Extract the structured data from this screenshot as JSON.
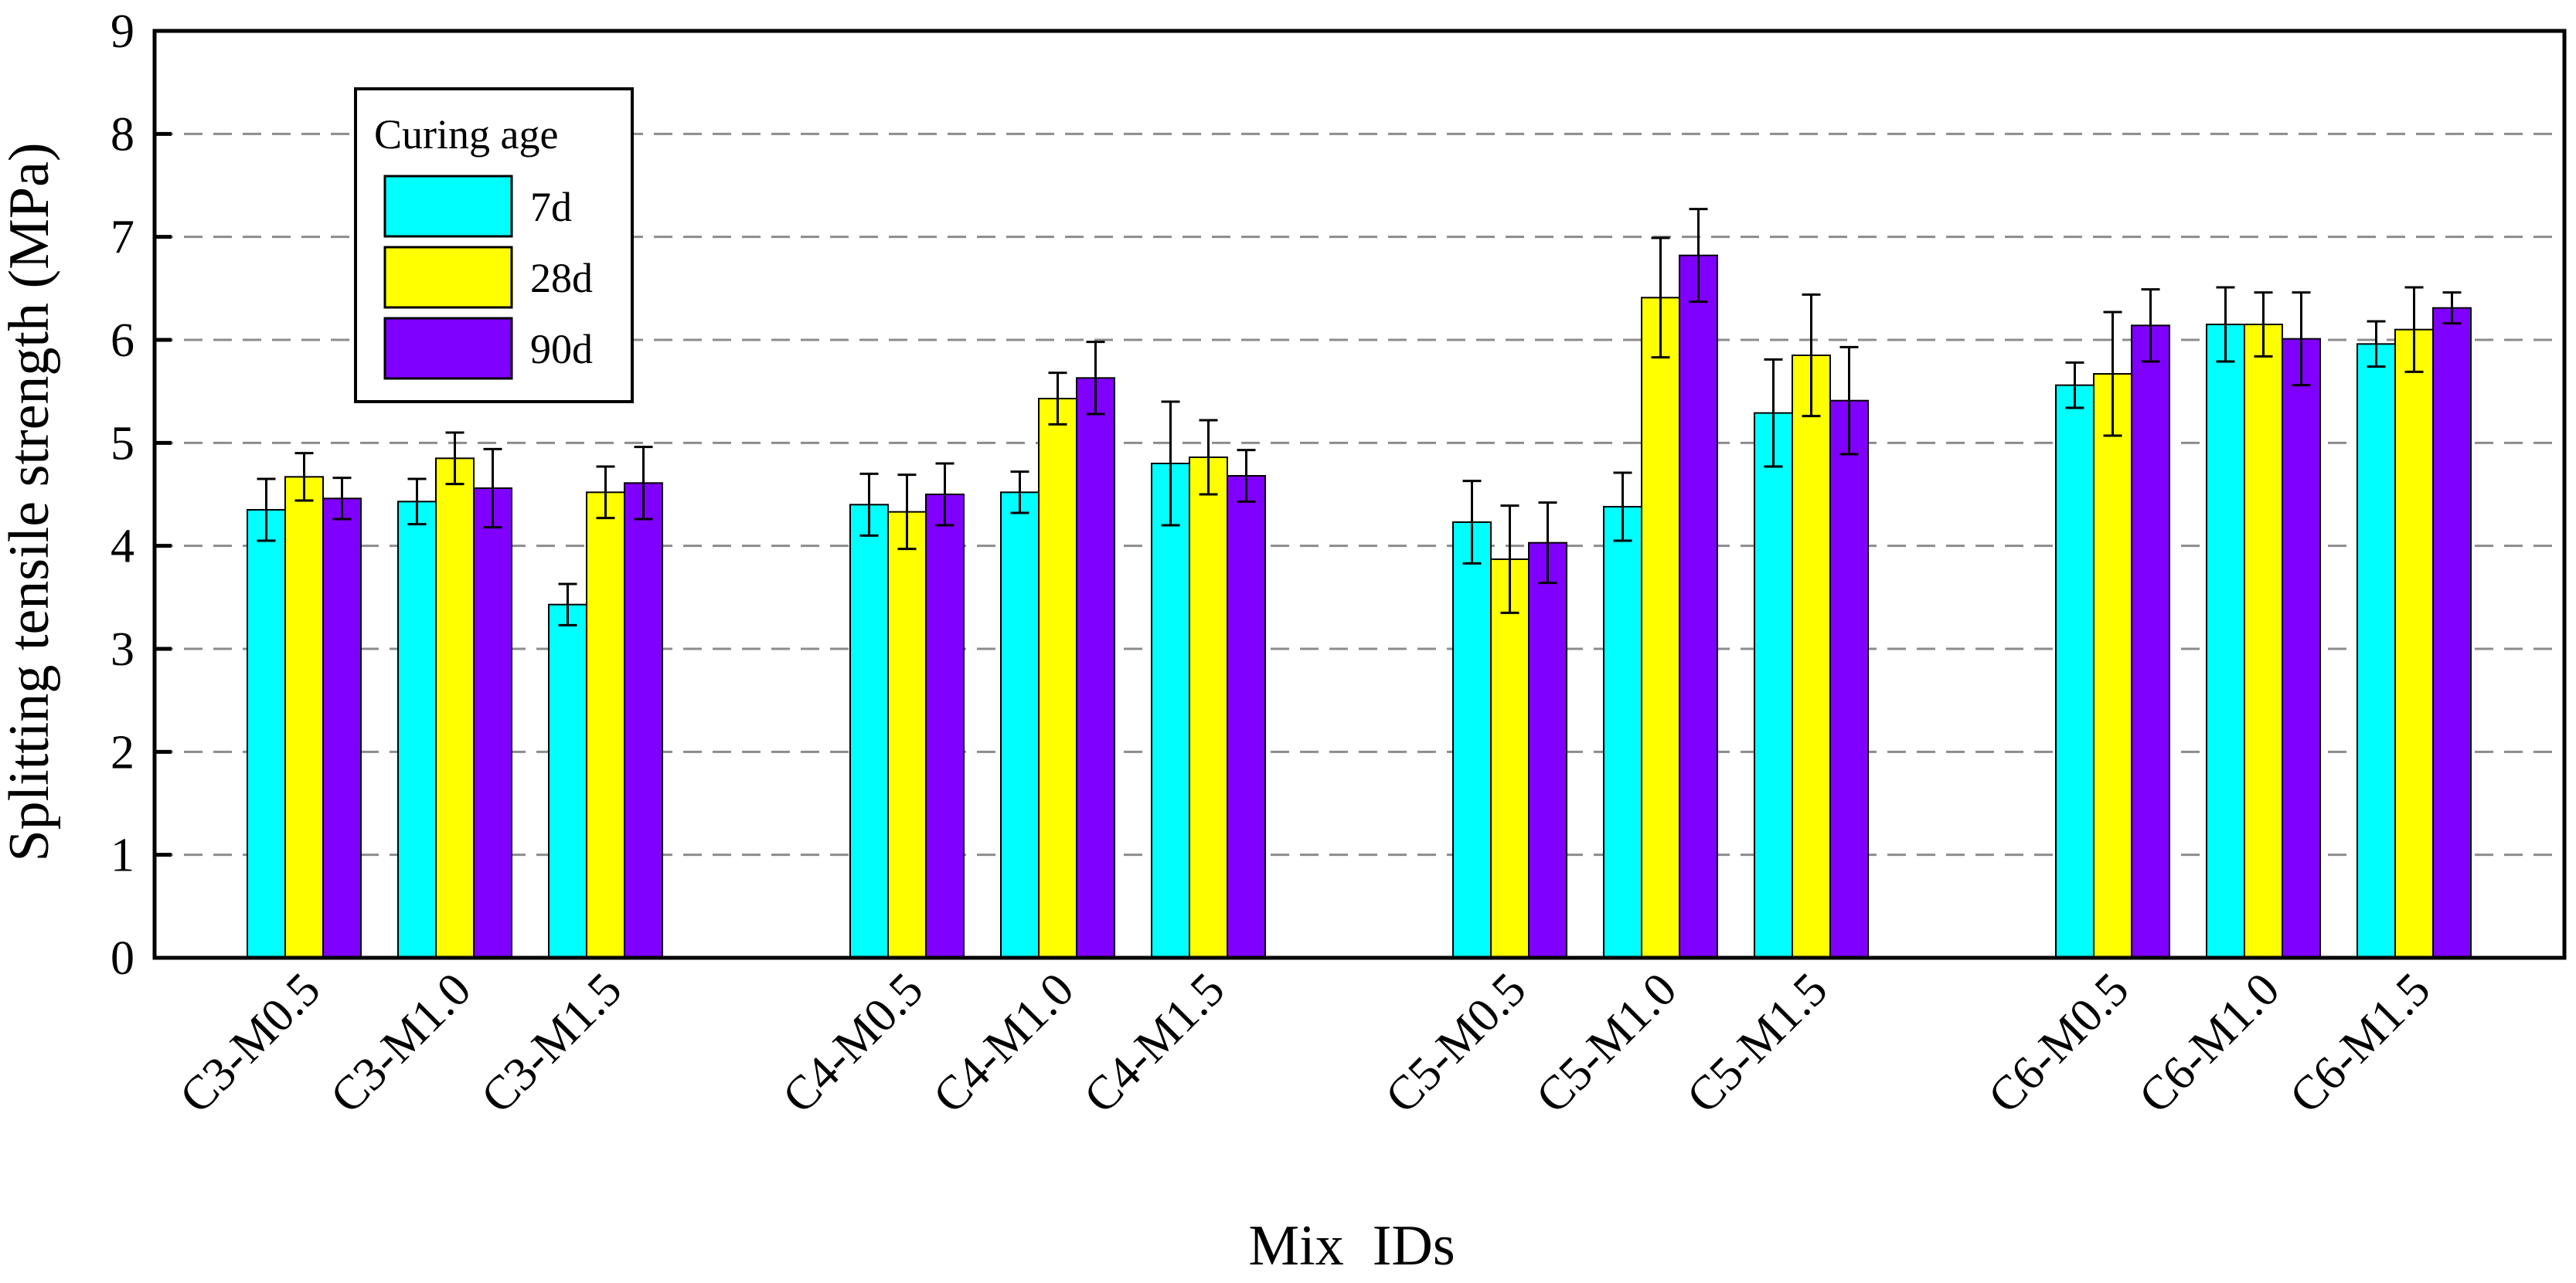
{
  "chart_data": {
    "type": "bar",
    "title": "",
    "xlabel": "Mix  IDs",
    "ylabel": "Splitting tensile strength (MPa)",
    "ylim": [
      0,
      9
    ],
    "yticks": [
      0,
      1,
      2,
      3,
      4,
      5,
      6,
      7,
      8,
      9
    ],
    "grid": "horizontal dashed at integer ticks",
    "legend": {
      "title": "Curing age",
      "placement": "top-left"
    },
    "groups": [
      "C3",
      "C4",
      "C5",
      "C6"
    ],
    "categories": [
      "C3-M0.5",
      "C3-M1.0",
      "C3-M1.5",
      "C4-M0.5",
      "C4-M1.0",
      "C4-M1.5",
      "C5-M0.5",
      "C5-M1.0",
      "C5-M1.5",
      "C6-M0.5",
      "C6-M1.0",
      "C6-M1.5"
    ],
    "series": [
      {
        "name": "7d",
        "color": "#00ffff",
        "values": [
          4.35,
          4.43,
          3.43,
          4.4,
          4.52,
          4.8,
          4.23,
          4.38,
          5.29,
          5.56,
          6.15,
          5.96
        ],
        "errors": [
          0.3,
          0.22,
          0.2,
          0.3,
          0.2,
          0.6,
          0.4,
          0.33,
          0.52,
          0.22,
          0.36,
          0.22
        ]
      },
      {
        "name": "28d",
        "color": "#ffff00",
        "values": [
          4.67,
          4.85,
          4.52,
          4.33,
          5.43,
          4.86,
          3.87,
          6.41,
          5.85,
          5.67,
          6.15,
          6.1
        ],
        "errors": [
          0.23,
          0.25,
          0.25,
          0.36,
          0.25,
          0.36,
          0.52,
          0.58,
          0.59,
          0.6,
          0.31,
          0.41
        ]
      },
      {
        "name": "90d",
        "color": "#8000ff",
        "values": [
          4.46,
          4.56,
          4.61,
          4.5,
          5.63,
          4.68,
          4.03,
          6.82,
          5.41,
          6.14,
          6.01,
          6.31
        ],
        "errors": [
          0.2,
          0.38,
          0.35,
          0.3,
          0.35,
          0.25,
          0.39,
          0.45,
          0.52,
          0.35,
          0.45,
          0.15
        ]
      }
    ]
  }
}
